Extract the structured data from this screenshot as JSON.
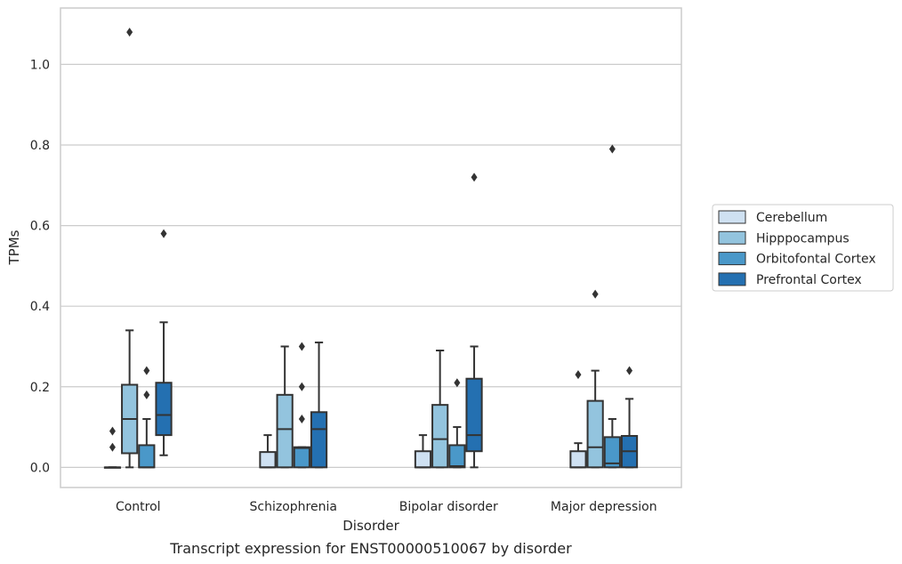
{
  "chart_data": {
    "type": "boxplot",
    "xlabel": "Disorder",
    "ylabel": "TPMs",
    "caption": "Transcript expression for ENST00000510067 by disorder",
    "ylim": [
      -0.05,
      1.14
    ],
    "yticks": [
      0.0,
      0.2,
      0.4,
      0.6,
      0.8,
      1.0
    ],
    "ytick_labels": [
      "0.0",
      "0.2",
      "0.4",
      "0.6",
      "0.8",
      "1.0"
    ],
    "grid": "horizontal",
    "legend_position": "right",
    "categories": [
      "Control",
      "Schizophrenia",
      "Bipolar disorder",
      "Major depression"
    ],
    "series": [
      {
        "name": "Cerebellum",
        "color": "#cfe1f2",
        "boxes": [
          {
            "q1": 0.0,
            "median": 0.0,
            "q3": 0.0,
            "whisker_low": 0.0,
            "whisker_high": 0.0,
            "outliers": [
              0.05,
              0.09
            ]
          },
          {
            "q1": 0.0,
            "median": 0.0,
            "q3": 0.038,
            "whisker_low": 0.0,
            "whisker_high": 0.08,
            "outliers": []
          },
          {
            "q1": 0.0,
            "median": 0.0,
            "q3": 0.04,
            "whisker_low": 0.0,
            "whisker_high": 0.08,
            "outliers": []
          },
          {
            "q1": 0.0,
            "median": 0.0,
            "q3": 0.04,
            "whisker_low": 0.0,
            "whisker_high": 0.06,
            "outliers": [
              0.23
            ]
          }
        ]
      },
      {
        "name": "Hipppocampus",
        "color": "#93c4de",
        "boxes": [
          {
            "q1": 0.035,
            "median": 0.12,
            "q3": 0.205,
            "whisker_low": 0.0,
            "whisker_high": 0.34,
            "outliers": [
              1.08
            ]
          },
          {
            "q1": 0.0,
            "median": 0.095,
            "q3": 0.18,
            "whisker_low": 0.0,
            "whisker_high": 0.3,
            "outliers": []
          },
          {
            "q1": 0.0,
            "median": 0.07,
            "q3": 0.155,
            "whisker_low": 0.0,
            "whisker_high": 0.29,
            "outliers": []
          },
          {
            "q1": 0.0,
            "median": 0.05,
            "q3": 0.165,
            "whisker_low": 0.0,
            "whisker_high": 0.24,
            "outliers": [
              0.43
            ]
          }
        ]
      },
      {
        "name": "Orbitofontal Cortex",
        "color": "#4a98c9",
        "boxes": [
          {
            "q1": 0.0,
            "median": 0.0,
            "q3": 0.055,
            "whisker_low": 0.0,
            "whisker_high": 0.12,
            "outliers": [
              0.18,
              0.24
            ]
          },
          {
            "q1": 0.0,
            "median": 0.048,
            "q3": 0.05,
            "whisker_low": 0.0,
            "whisker_high": 0.05,
            "outliers": [
              0.12,
              0.2,
              0.3
            ]
          },
          {
            "q1": 0.0,
            "median": 0.003,
            "q3": 0.055,
            "whisker_low": 0.0,
            "whisker_high": 0.1,
            "outliers": [
              0.21
            ]
          },
          {
            "q1": 0.0,
            "median": 0.01,
            "q3": 0.075,
            "whisker_low": 0.0,
            "whisker_high": 0.12,
            "outliers": [
              0.79
            ]
          }
        ]
      },
      {
        "name": "Prefrontal Cortex",
        "color": "#2470b1",
        "boxes": [
          {
            "q1": 0.08,
            "median": 0.13,
            "q3": 0.21,
            "whisker_low": 0.03,
            "whisker_high": 0.36,
            "outliers": [
              0.58
            ]
          },
          {
            "q1": 0.0,
            "median": 0.095,
            "q3": 0.137,
            "whisker_low": 0.0,
            "whisker_high": 0.31,
            "outliers": []
          },
          {
            "q1": 0.04,
            "median": 0.08,
            "q3": 0.22,
            "whisker_low": 0.0,
            "whisker_high": 0.3,
            "outliers": [
              0.72
            ]
          },
          {
            "q1": 0.0,
            "median": 0.04,
            "q3": 0.078,
            "whisker_low": 0.0,
            "whisker_high": 0.17,
            "outliers": [
              0.24
            ]
          }
        ]
      }
    ]
  }
}
